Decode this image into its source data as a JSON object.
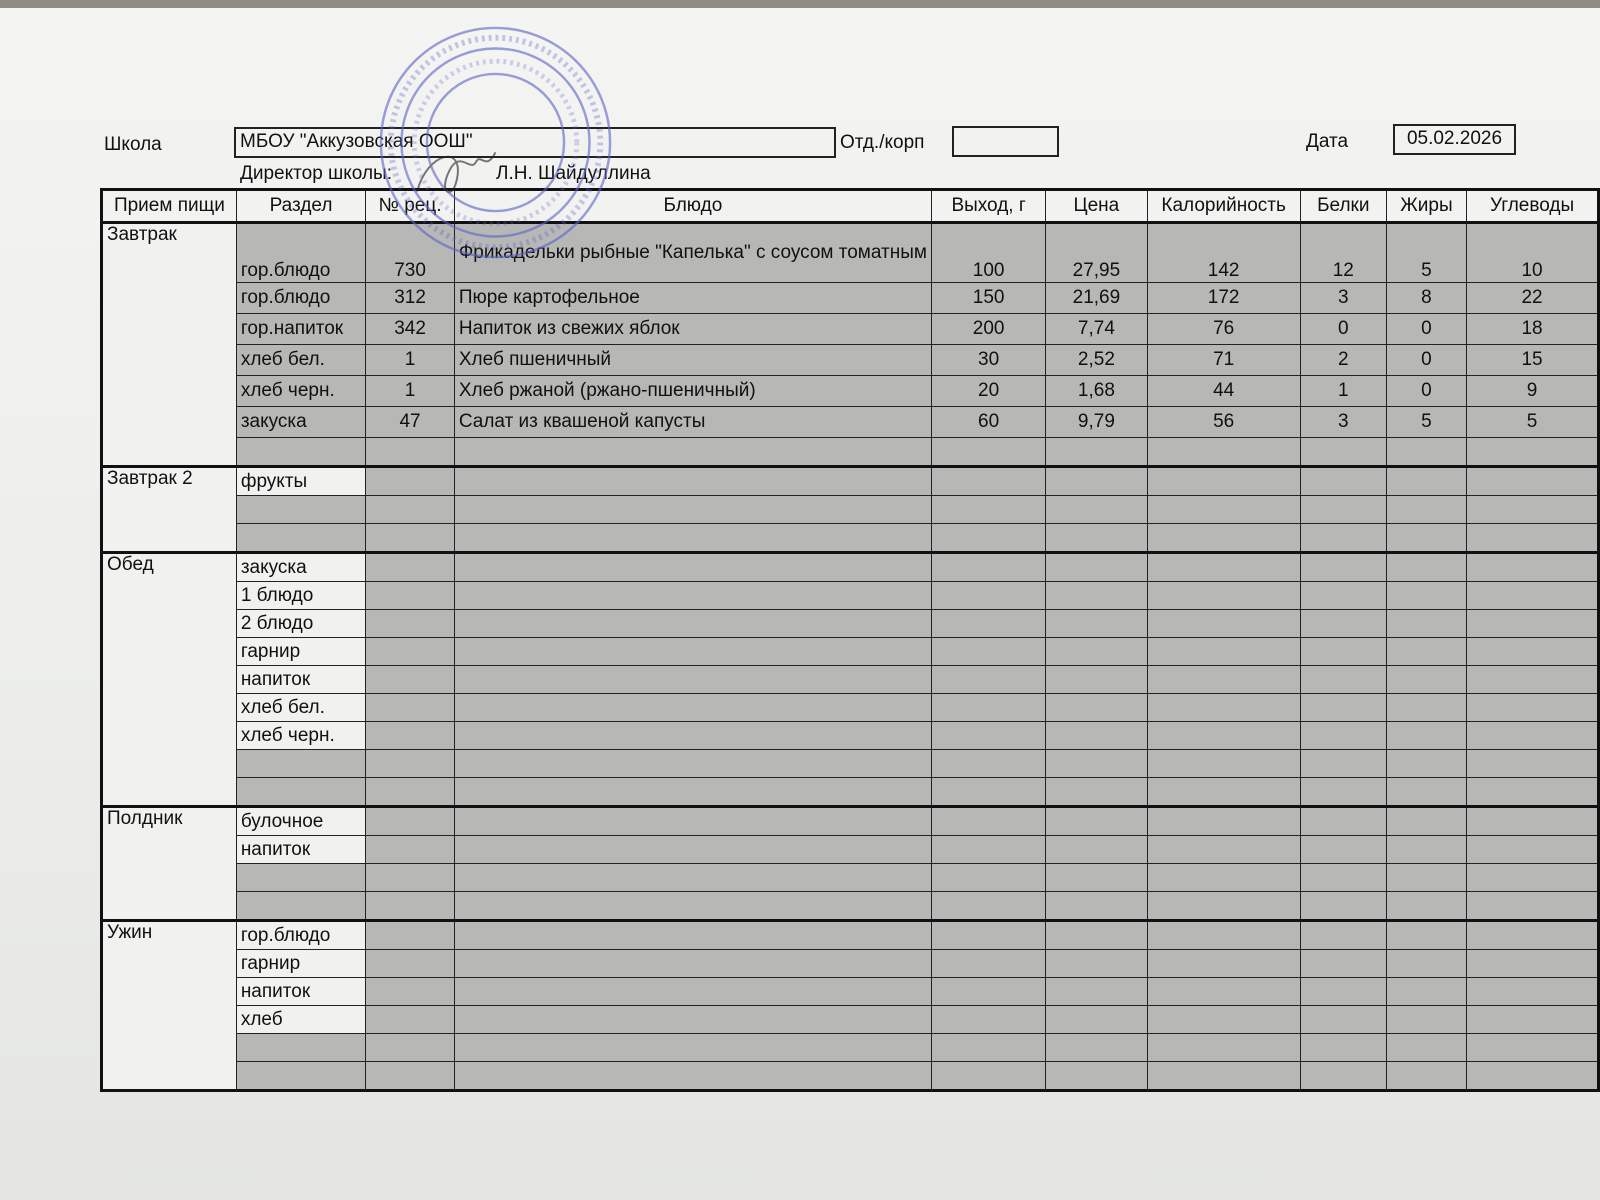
{
  "header": {
    "school_label": "Школа",
    "school_value": "МБОУ \"Аккузовская ООШ\"",
    "dept_label": "Отд./корп",
    "dept_value": "",
    "date_label": "Дата",
    "date_value": "05.02.2026",
    "director_label": "Директор школы:",
    "director_name": "Л.Н. Шайдуллина"
  },
  "stamp": {
    "outer_text": "ОБЩЕОБРАЗОВАТЕЛЬНОЕ УЧРЕЖДЕНИЕ «АККУЗОВСКАЯ",
    "inner_text": "ШКОЛА» АКТАНЫШСКОГО МУНИЦИПАЛЬНОГО",
    "ogrn": "ОГРН 1031635202774",
    "inn": "ИНН 1604001",
    "center": "МБОУ «Аккузовская ООШ»",
    "color": "#5a63c8"
  },
  "columns": [
    "Прием пищи",
    "Раздел",
    "№ рец.",
    "Блюдо",
    "Выход, г",
    "Цена",
    "Калорийность",
    "Белки",
    "Жиры",
    "Углеводы"
  ],
  "meals": [
    {
      "name": "Завтрак",
      "rows": [
        {
          "section": "гор.блюдо",
          "recipe": "730",
          "dish": "Фрикадельки рыбные \"Капелька\" с соусом томатным",
          "yield": "100",
          "price": "27,95",
          "kcal": "142",
          "protein": "12",
          "fat": "5",
          "carbs": "10"
        },
        {
          "section": "гор.блюдо",
          "recipe": "312",
          "dish": "Пюре картофельное",
          "yield": "150",
          "price": "21,69",
          "kcal": "172",
          "protein": "3",
          "fat": "8",
          "carbs": "22"
        },
        {
          "section": "гор.напиток",
          "recipe": "342",
          "dish": "Напиток из свежих яблок",
          "yield": "200",
          "price": "7,74",
          "kcal": "76",
          "protein": "0",
          "fat": "0",
          "carbs": "18"
        },
        {
          "section": "хлеб бел.",
          "recipe": "1",
          "dish": "Хлеб пшеничный",
          "yield": "30",
          "price": "2,52",
          "kcal": "71",
          "protein": "2",
          "fat": "0",
          "carbs": "15"
        },
        {
          "section": "хлеб черн.",
          "recipe": "1",
          "dish": "Хлеб ржаной (ржано-пшеничный)",
          "yield": "20",
          "price": "1,68",
          "kcal": "44",
          "protein": "1",
          "fat": "0",
          "carbs": "9"
        },
        {
          "section": "закуска",
          "recipe": "47",
          "dish": "Салат из квашеной капусты",
          "yield": "60",
          "price": "9,79",
          "kcal": "56",
          "protein": "3",
          "fat": "5",
          "carbs": "5"
        },
        {
          "section": ""
        }
      ]
    },
    {
      "name": "Завтрак 2",
      "rows": [
        {
          "section": "фрукты"
        },
        {
          "section": ""
        },
        {
          "section": ""
        }
      ]
    },
    {
      "name": "Обед",
      "rows": [
        {
          "section": "закуска"
        },
        {
          "section": "1 блюдо"
        },
        {
          "section": "2 блюдо"
        },
        {
          "section": "гарнир"
        },
        {
          "section": "напиток"
        },
        {
          "section": "хлеб бел."
        },
        {
          "section": "хлеб черн."
        },
        {
          "section": ""
        },
        {
          "section": ""
        }
      ]
    },
    {
      "name": "Полдник",
      "rows": [
        {
          "section": "булочное"
        },
        {
          "section": "напиток"
        },
        {
          "section": ""
        },
        {
          "section": ""
        }
      ]
    },
    {
      "name": "Ужин",
      "rows": [
        {
          "section": "гор.блюдо"
        },
        {
          "section": "гарнир"
        },
        {
          "section": "напиток"
        },
        {
          "section": "хлеб"
        },
        {
          "section": ""
        },
        {
          "section": ""
        }
      ]
    }
  ]
}
